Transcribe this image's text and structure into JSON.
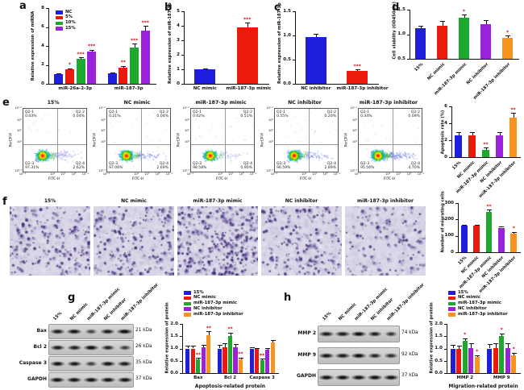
{
  "panel_labels": {
    "a": "a",
    "b": "b",
    "c": "c",
    "d": "d",
    "e": "e",
    "f": "f",
    "g": "g",
    "h": "h"
  },
  "colors": {
    "blue": "#1e1edc",
    "red": "#ea1a0c",
    "green": "#1ca92d",
    "purple": "#9a22d8",
    "orange": "#f79420",
    "sig": "#cc1111",
    "axis": "#111111"
  },
  "groups": [
    "15%",
    "NC mimic",
    "miR-187-3p mimic",
    "NC inhibitor",
    "miR-187-3p inhibitor"
  ],
  "chart_data": [
    {
      "id": "a",
      "type": "bar",
      "title": "",
      "ylabel": "Relative expression of miRNA",
      "xlabel": "",
      "ylim": [
        0,
        8
      ],
      "yticks": [
        "0",
        "2",
        "4",
        "6",
        "8"
      ],
      "ml": 24,
      "categories": [
        "miR-26a-2-3p",
        "miR-187-3p"
      ],
      "legend": {
        "position": "inside-top-left"
      },
      "series": [
        {
          "name": "NC",
          "color": "blue",
          "values": [
            1.0,
            1.1
          ],
          "errors": [
            0.08,
            0.1
          ],
          "sig": [
            "",
            ""
          ]
        },
        {
          "name": "5%",
          "color": "red",
          "values": [
            1.5,
            1.7
          ],
          "errors": [
            0.15,
            0.18
          ],
          "sig": [
            "*",
            "**"
          ]
        },
        {
          "name": "10%",
          "color": "green",
          "values": [
            2.6,
            3.8
          ],
          "errors": [
            0.2,
            0.45
          ],
          "sig": [
            "***",
            "***"
          ]
        },
        {
          "name": "15%",
          "color": "purple",
          "values": [
            3.4,
            5.6
          ],
          "errors": [
            0.2,
            0.5
          ],
          "sig": [
            "***",
            "***"
          ]
        }
      ]
    },
    {
      "id": "b",
      "type": "bar",
      "ylabel": "Relative expression of miR-187-3p",
      "ylim": [
        0,
        5
      ],
      "yticks": [
        "0",
        "1",
        "2",
        "3",
        "4",
        "5"
      ],
      "ml": 22,
      "categories": [
        "NC mimic",
        "miR-187-3p mimic"
      ],
      "values": [
        1.0,
        3.9
      ],
      "errors": [
        0.08,
        0.3
      ],
      "sig": [
        "",
        "***"
      ],
      "colors": [
        "blue",
        "red"
      ]
    },
    {
      "id": "c",
      "type": "bar",
      "ylabel": "Relative expression of miR-187-3p",
      "ylim": [
        0,
        1.5
      ],
      "yticks": [
        "0.0",
        "0.5",
        "1.0",
        "1.5"
      ],
      "ml": 24,
      "categories": [
        "NC inhibitor",
        "miR-187-3p inhibitor"
      ],
      "values": [
        0.97,
        0.27
      ],
      "errors": [
        0.07,
        0.03
      ],
      "sig": [
        "",
        "***"
      ],
      "colors": [
        "blue",
        "red"
      ]
    },
    {
      "id": "d",
      "type": "bar",
      "ylabel": "Cell viability (OD450nm)",
      "ylim": [
        0.5,
        1.5
      ],
      "yticks": [
        "0.5",
        "1.0",
        "1.5"
      ],
      "ml": 24,
      "rotate_x_labels": true,
      "categories": [
        "15%",
        "NC mimic",
        "miR-187-3p mimic",
        "NC inhibitor",
        "miR-187-3p inhibitor"
      ],
      "values": [
        1.12,
        1.17,
        1.33,
        1.2,
        0.92
      ],
      "errors": [
        0.05,
        0.1,
        0.07,
        0.09,
        0.05
      ],
      "sig": [
        "",
        "",
        "*",
        "",
        "*"
      ],
      "colors": [
        "blue",
        "red",
        "green",
        "purple",
        "orange"
      ]
    },
    {
      "id": "e",
      "type": "bar",
      "ylabel": "Apoptosis rate (%)",
      "ylim": [
        0,
        6
      ],
      "yticks": [
        "0",
        "2",
        "4",
        "6"
      ],
      "ml": 16,
      "rotate_x_labels": true,
      "categories": [
        "15%",
        "NC mimic",
        "miR-187-3p mimic",
        "NC inhibitor",
        "miR-187-3p inhibitor"
      ],
      "values": [
        2.6,
        2.6,
        0.9,
        2.6,
        4.7
      ],
      "errors": [
        0.35,
        0.35,
        0.2,
        0.4,
        0.5
      ],
      "sig": [
        "",
        "",
        "**",
        "",
        "**"
      ],
      "colors": [
        "blue",
        "red",
        "green",
        "purple",
        "orange"
      ]
    },
    {
      "id": "f",
      "type": "bar",
      "ylabel": "Number of migrating cells",
      "ylim": [
        0,
        300
      ],
      "yticks": [
        "0",
        "100",
        "200",
        "300"
      ],
      "ml": 24,
      "rotate_x_labels": true,
      "categories": [
        "15%",
        "NC mimic",
        "miR-187-3p mimic",
        "NC inhibitor",
        "miR-187-3p inhibitor"
      ],
      "values": [
        160,
        160,
        245,
        150,
        115
      ],
      "errors": [
        6,
        8,
        15,
        6,
        10
      ],
      "sig": [
        "",
        "",
        "**",
        "",
        "*"
      ],
      "colors": [
        "blue",
        "red",
        "green",
        "purple",
        "orange"
      ]
    },
    {
      "id": "g",
      "type": "bar",
      "ylabel": "Relative expression of protein",
      "xlabel": "Apoptosis-related protein",
      "ylim": [
        0,
        2
      ],
      "yticks": [
        "0.0",
        "0.5",
        "1.0",
        "1.5",
        "2.0"
      ],
      "ml": 24,
      "categories": [
        "Bax",
        "Bcl 2",
        "Caspase 3"
      ],
      "legend": {
        "position": "above"
      },
      "series": [
        {
          "name": "15%",
          "color": "blue",
          "values": [
            1.0,
            1.0,
            1.0
          ],
          "errors": [
            0.1,
            0.15,
            0.05
          ],
          "sig": [
            "",
            "",
            ""
          ]
        },
        {
          "name": "NC mimic",
          "color": "red",
          "values": [
            1.0,
            1.05,
            0.97
          ],
          "errors": [
            0.12,
            0.15,
            0.06
          ],
          "sig": [
            "",
            "",
            ""
          ]
        },
        {
          "name": "miR-187-3p mimic",
          "color": "green",
          "values": [
            0.55,
            1.5,
            0.52
          ],
          "errors": [
            0.07,
            0.15,
            0.06
          ],
          "sig": [
            "**",
            "**",
            "**"
          ]
        },
        {
          "name": "NC inhibitor",
          "color": "purple",
          "values": [
            1.05,
            1.05,
            0.95
          ],
          "errors": [
            0.1,
            0.12,
            0.08
          ],
          "sig": [
            "",
            "",
            ""
          ]
        },
        {
          "name": "miR-187-3p inhibitor",
          "color": "orange",
          "values": [
            1.55,
            0.55,
            1.25
          ],
          "errors": [
            0.15,
            0.08,
            0.1
          ],
          "sig": [
            "**",
            "**",
            ""
          ]
        }
      ]
    },
    {
      "id": "h",
      "type": "bar",
      "ylabel": "Relative expression of protein",
      "xlabel": "Migration-related protein",
      "ylim": [
        0,
        2
      ],
      "yticks": [
        "0.0",
        "0.5",
        "1.0",
        "1.5",
        "2.0"
      ],
      "ml": 24,
      "categories": [
        "MMP 2",
        "MMP 9"
      ],
      "legend": {
        "position": "above"
      },
      "series": [
        {
          "name": "15%",
          "color": "blue",
          "values": [
            1.0,
            1.0
          ],
          "errors": [
            0.15,
            0.18
          ],
          "sig": [
            "",
            ""
          ]
        },
        {
          "name": "NC mimic",
          "color": "red",
          "values": [
            0.98,
            1.02
          ],
          "errors": [
            0.15,
            0.18
          ],
          "sig": [
            "",
            ""
          ]
        },
        {
          "name": "miR-187-3p mimic",
          "color": "green",
          "values": [
            1.3,
            1.5
          ],
          "errors": [
            0.12,
            0.12
          ],
          "sig": [
            "*",
            "*"
          ]
        },
        {
          "name": "NC inhibitor",
          "color": "purple",
          "values": [
            1.02,
            1.02
          ],
          "errors": [
            0.2,
            0.2
          ],
          "sig": [
            "",
            ""
          ]
        },
        {
          "name": "miR-187-3p inhibitor",
          "color": "orange",
          "values": [
            0.65,
            0.72
          ],
          "errors": [
            0.08,
            0.1
          ],
          "sig": [
            "*",
            "*"
          ]
        }
      ]
    }
  ],
  "flow": {
    "ylabel": "PerCP-H",
    "xlabel": "FITC-H",
    "yticks": [
      "10^7.1",
      "10^6",
      "10^5",
      "10^4",
      "10^1.3"
    ],
    "xticks": [
      "10^1.2",
      "10^4",
      "10^5",
      "10^6",
      "10^7.1"
    ],
    "quadrant_names": [
      "Q2-1",
      "Q2-2",
      "Q2-3",
      "Q2-4"
    ],
    "plots": [
      {
        "title": "15%",
        "quadrants": {
          "Q2-1": "0.03%",
          "Q2-2": "0.04%",
          "Q2-3": "97.31%",
          "Q2-4": "2.62%"
        }
      },
      {
        "title": "NC mimic",
        "quadrants": {
          "Q2-1": "0.21%",
          "Q2-2": "0.04%",
          "Q2-3": "97.06%",
          "Q2-4": "2.69%"
        }
      },
      {
        "title": "miR-187-3p mimic",
        "quadrants": {
          "Q2-1": "0.02%",
          "Q2-2": "0.51%",
          "Q2-3": "98.58%",
          "Q2-4": "0.90%"
        }
      },
      {
        "title": "NC inhibitor",
        "quadrants": {
          "Q2-1": "0.55%",
          "Q2-2": "0.20%",
          "Q2-3": "96.59%",
          "Q2-4": "2.89%"
        }
      },
      {
        "title": "miR-187-3p inhibitor",
        "quadrants": {
          "Q2-1": "0.34%",
          "Q2-2": "0.09%",
          "Q2-3": "95.56%",
          "Q2-4": "4.70%"
        }
      }
    ]
  },
  "migration": {
    "titles": [
      "15%",
      "NC mimic",
      "miR-187-3p mimic",
      "NC inhibitor",
      "miR-187-3p inhibitor"
    ],
    "densities": [
      0.55,
      0.5,
      0.85,
      0.5,
      0.32
    ]
  },
  "blots": {
    "g": {
      "columns": [
        "15%",
        "NC mimic",
        "miR-187-3p mimic",
        "NC inhibitor",
        "miR-187-3p inhibitor"
      ],
      "rows": [
        {
          "protein": "Bax",
          "kda": "21 kDa",
          "bands": [
            0.8,
            0.85,
            0.35,
            0.8,
            0.95
          ]
        },
        {
          "protein": "Bcl 2",
          "kda": "26 kDa",
          "bands": [
            0.8,
            0.75,
            0.95,
            0.7,
            0.45
          ]
        },
        {
          "protein": "Caspase 3",
          "kda": "35 kDa",
          "bands": [
            0.85,
            0.8,
            0.4,
            0.85,
            0.8
          ]
        },
        {
          "protein": "GAPDH",
          "kda": "37 kDa",
          "bands": [
            0.9,
            0.9,
            0.9,
            0.9,
            0.9
          ]
        }
      ]
    },
    "h": {
      "columns": [
        "15%",
        "NC mimic",
        "miR-187-3p mimic",
        "NC inhibitor",
        "miR-187-3p inhibitor"
      ],
      "rows": [
        {
          "protein": "MMP 2",
          "kda": "74 kDa",
          "bands": [
            0.8,
            0.8,
            0.95,
            0.75,
            0.5
          ]
        },
        {
          "protein": "MMP 9",
          "kda": "92 kDa",
          "bands": [
            0.85,
            0.8,
            0.95,
            0.7,
            0.6
          ]
        },
        {
          "protein": "GAPDH",
          "kda": "37 kDa",
          "bands": [
            0.9,
            0.9,
            0.9,
            0.9,
            0.9
          ]
        }
      ]
    }
  }
}
